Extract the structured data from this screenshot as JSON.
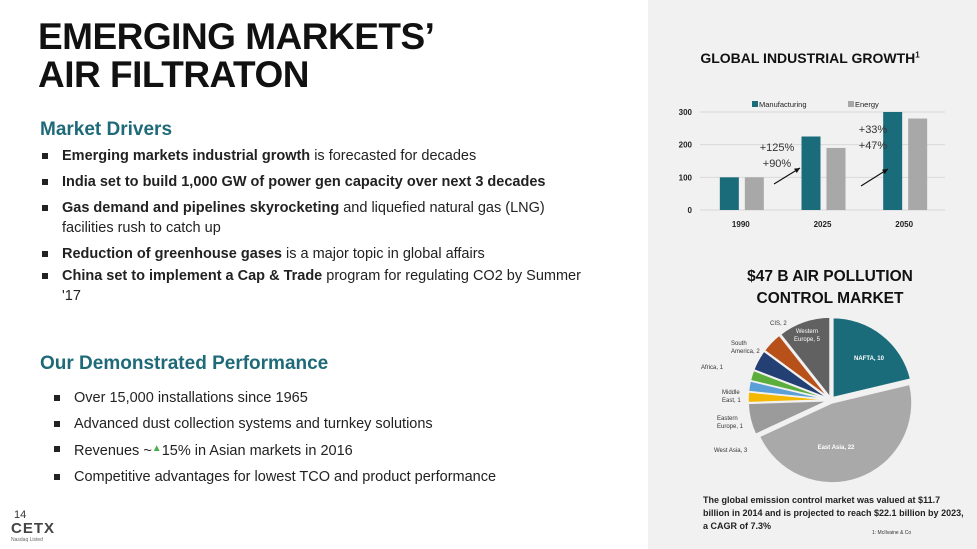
{
  "title_line1": "EMERGING MARKETS’",
  "title_line2": "AIR FILTRATON",
  "drivers": {
    "heading": "Market Drivers",
    "items": [
      {
        "bold": "Emerging markets industrial growth",
        "rest": " is forecasted for decades"
      },
      {
        "bold": "India set to build 1,000 GW of power gen capacity over next 3 decades",
        "rest": ""
      },
      {
        "bold": "Gas demand and pipelines skyrocketing",
        "rest": " and liquefied natural gas (LNG) facilities rush to catch up"
      },
      {
        "bold": "Reduction of greenhouse gases",
        "rest": " is a major topic in global affairs"
      },
      {
        "bold": "China set to implement a Cap & Trade",
        "rest": " program for regulating CO2 by Summer '17"
      }
    ]
  },
  "performance": {
    "heading": "Our Demonstrated Performance",
    "items": [
      {
        "text": "Over 15,000 installations since 1965"
      },
      {
        "text": "Advanced dust collection systems and turnkey solutions"
      },
      {
        "pre": "Revenues ~",
        "icon": "up-triangle-icon",
        "post": "15% in Asian markets in 2016"
      },
      {
        "text": "Competitive advantages for lowest TCO and product performance"
      }
    ]
  },
  "page_number": "14",
  "logo": {
    "name": "CETX",
    "sub": "Nasdaq Listed"
  },
  "footnote_text": "The global emission control market was valued at $11.7 billion in 2014 and is projected to reach $22.1 billion by 2023, a CAGR of 7.3%",
  "source": "1: McIlvaine & Co",
  "chart_data": [
    {
      "type": "bar",
      "title": "GLOBAL INDUSTRIAL GROWTH",
      "title_sup": "1",
      "categories": [
        "1990",
        "2025",
        "2050"
      ],
      "series": [
        {
          "name": "Manufacturing",
          "color": "#1b6c7a",
          "values": [
            100,
            225,
            300
          ]
        },
        {
          "name": "Energy",
          "color": "#a8a8a8",
          "values": [
            100,
            190,
            280
          ]
        }
      ],
      "ylim": [
        0,
        300
      ],
      "yticks": [
        0,
        100,
        200,
        300
      ],
      "legend": "top",
      "grid": true,
      "annotations": [
        {
          "lines": [
            "+125%",
            "+90%"
          ]
        },
        {
          "lines": [
            "+33%",
            "+47%"
          ]
        }
      ]
    },
    {
      "type": "pie",
      "title_line1": "$47 B AIR POLLUTION",
      "title_line2": "CONTROL MARKET",
      "slices": [
        {
          "label": "NAFTA, 10",
          "value": 10,
          "color": "#1b6c7a"
        },
        {
          "label": "East Asia, 22",
          "value": 22,
          "color": "#a9a9a9"
        },
        {
          "label": "West Asia, 3",
          "value": 3,
          "color": "#9b9b9b"
        },
        {
          "label": "Eastern Europe, 1",
          "value": 1,
          "color": "#f5b800"
        },
        {
          "label": "Middle East, 1",
          "value": 1,
          "color": "#5a9fd8"
        },
        {
          "label": "Africa, 1",
          "value": 1,
          "color": "#5cae3c"
        },
        {
          "label": "South America, 2",
          "value": 2,
          "color": "#243f73"
        },
        {
          "label": "CIS, 2",
          "value": 2,
          "color": "#b8501a"
        },
        {
          "label": "Western Europe, 5",
          "value": 5,
          "color": "#616161"
        }
      ]
    }
  ]
}
